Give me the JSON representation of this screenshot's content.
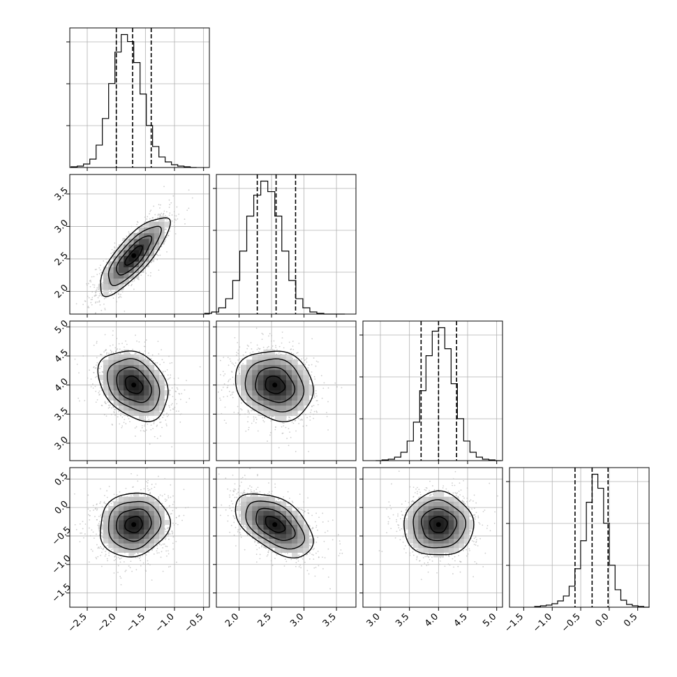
{
  "chart_data": {
    "type": "corner",
    "title": "",
    "grid": true,
    "n_params": 4,
    "ranges": [
      [
        -2.8,
        -0.4
      ],
      [
        1.65,
        3.8
      ],
      [
        2.7,
        5.1
      ],
      [
        -1.75,
        0.7
      ]
    ],
    "ticks": [
      [
        -2.5,
        -2.0,
        -1.5,
        -1.0,
        -0.5
      ],
      [
        2.0,
        2.5,
        3.0,
        3.5
      ],
      [
        3.0,
        3.5,
        4.0,
        4.5,
        5.0
      ],
      [
        -1.5,
        -1.0,
        -0.5,
        0.0,
        0.5
      ]
    ],
    "tick_labels": [
      [
        "−2.5",
        "−2.0",
        "−1.5",
        "−1.0",
        "−0.5"
      ],
      [
        "2.0",
        "2.5",
        "3.0",
        "3.5"
      ],
      [
        "3.0",
        "3.5",
        "4.0",
        "4.5",
        "5.0"
      ],
      [
        "−1.5",
        "−1.0",
        "−0.5",
        "0.0",
        "0.5"
      ]
    ],
    "means": [
      -1.7,
      2.55,
      4.0,
      -0.3
    ],
    "sigmas": [
      0.3,
      0.3,
      0.3,
      0.28
    ],
    "correlations": {
      "0-1": 0.8,
      "0-2": -0.3,
      "1-2": -0.15,
      "0-3": 0.1,
      "1-3": -0.5,
      "2-3": 0.0
    },
    "quantiles": [
      [
        -2.0,
        -1.72,
        -1.4
      ],
      [
        2.28,
        2.57,
        2.87
      ],
      [
        3.7,
        4.0,
        4.31
      ],
      [
        -0.6,
        -0.3,
        -0.02
      ]
    ],
    "contour_levels_sigma": [
      0.5,
      1.0,
      1.5,
      2.0
    ],
    "histogram_bins": 20,
    "histograms": [
      [
        1,
        2,
        5,
        12,
        32,
        70,
        120,
        165,
        190,
        180,
        150,
        105,
        60,
        30,
        15,
        8,
        4,
        2,
        1,
        0
      ],
      [
        1,
        3,
        9,
        22,
        48,
        90,
        140,
        170,
        190,
        175,
        140,
        90,
        48,
        22,
        9,
        3,
        1,
        0,
        0,
        0
      ],
      [
        0,
        1,
        2,
        5,
        12,
        28,
        55,
        100,
        150,
        185,
        190,
        160,
        110,
        60,
        28,
        12,
        5,
        2,
        1,
        0
      ],
      [
        1,
        2,
        3,
        5,
        9,
        16,
        30,
        55,
        95,
        150,
        190,
        170,
        120,
        60,
        25,
        10,
        4,
        2,
        1,
        0
      ]
    ]
  }
}
